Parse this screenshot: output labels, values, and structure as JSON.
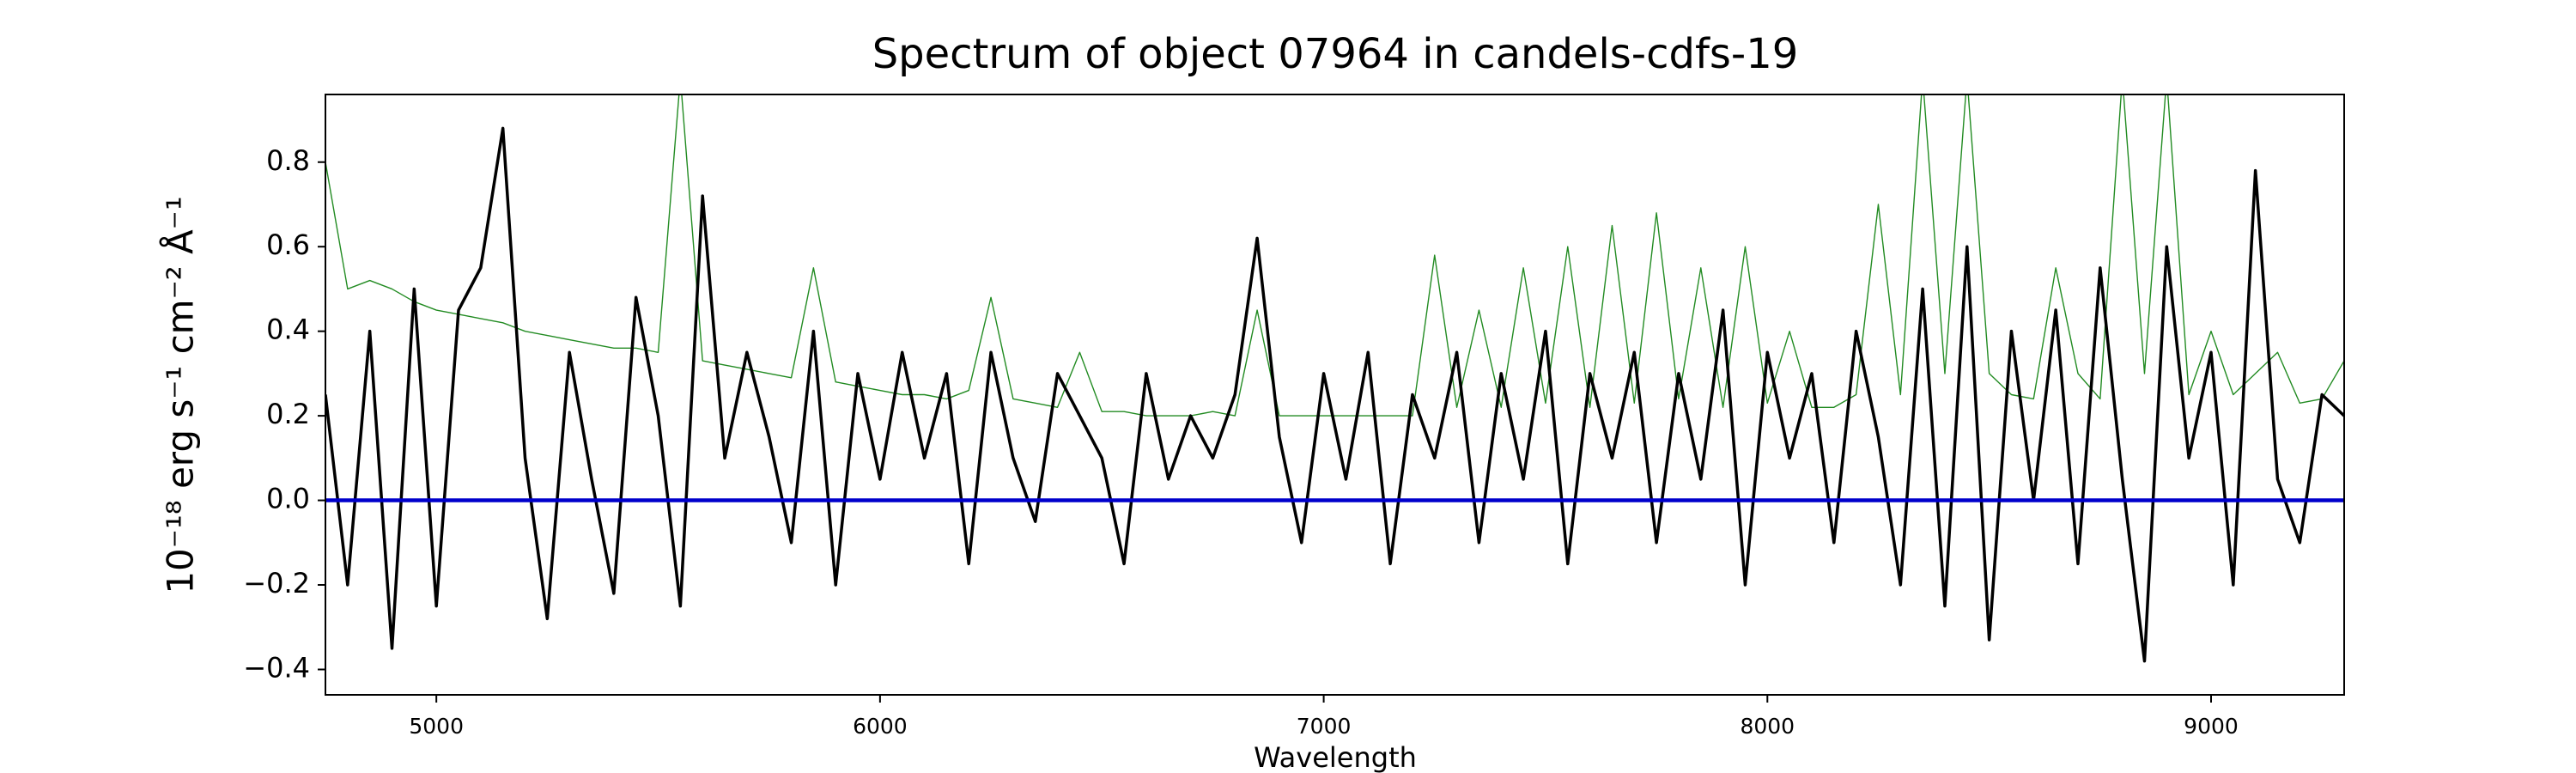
{
  "chart_data": {
    "type": "line",
    "title": "Spectrum of object 07964 in candels-cdfs-19",
    "xlabel": "Wavelength",
    "ylabel": "10⁻¹⁸ erg s⁻¹ cm⁻² Å⁻¹",
    "x": [
      4750,
      4800,
      4850,
      4900,
      4950,
      5000,
      5050,
      5100,
      5150,
      5200,
      5250,
      5300,
      5350,
      5400,
      5450,
      5500,
      5550,
      5600,
      5650,
      5700,
      5750,
      5800,
      5850,
      5900,
      5950,
      6000,
      6050,
      6100,
      6150,
      6200,
      6250,
      6300,
      6350,
      6400,
      6450,
      6500,
      6550,
      6600,
      6650,
      6700,
      6750,
      6800,
      6850,
      6900,
      6950,
      7000,
      7050,
      7100,
      7150,
      7200,
      7250,
      7300,
      7350,
      7400,
      7450,
      7500,
      7550,
      7600,
      7650,
      7700,
      7750,
      7800,
      7850,
      7900,
      7950,
      8000,
      8050,
      8100,
      8150,
      8200,
      8250,
      8300,
      8350,
      8400,
      8450,
      8500,
      8550,
      8600,
      8650,
      8700,
      8750,
      8800,
      8850,
      8900,
      8950,
      9000,
      9050,
      9100,
      9150,
      9200,
      9250,
      9300
    ],
    "series": [
      {
        "color": "#228b22",
        "values": [
          0.8,
          0.5,
          0.52,
          0.5,
          0.47,
          0.45,
          0.44,
          0.43,
          0.42,
          0.4,
          0.39,
          0.38,
          0.37,
          0.36,
          0.36,
          0.35,
          1.0,
          0.33,
          0.32,
          0.31,
          0.3,
          0.29,
          0.55,
          0.28,
          0.27,
          0.26,
          0.25,
          0.25,
          0.24,
          0.26,
          0.48,
          0.24,
          0.23,
          0.22,
          0.35,
          0.21,
          0.21,
          0.2,
          0.2,
          0.2,
          0.21,
          0.2,
          0.45,
          0.2,
          0.2,
          0.2,
          0.2,
          0.2,
          0.2,
          0.2,
          0.58,
          0.22,
          0.45,
          0.22,
          0.55,
          0.23,
          0.6,
          0.22,
          0.65,
          0.23,
          0.68,
          0.24,
          0.55,
          0.22,
          0.6,
          0.23,
          0.4,
          0.22,
          0.22,
          0.25,
          0.7,
          0.25,
          1.0,
          0.3,
          1.0,
          0.3,
          0.25,
          0.24,
          0.55,
          0.3,
          0.24,
          1.0,
          0.3,
          1.0,
          0.25,
          0.4,
          0.25,
          0.3,
          0.35,
          0.23,
          0.24,
          0.33
        ]
      },
      {
        "color": "#000000",
        "values": [
          0.25,
          -0.2,
          0.4,
          -0.35,
          0.5,
          -0.25,
          0.45,
          0.55,
          0.88,
          0.1,
          -0.28,
          0.35,
          0.05,
          -0.22,
          0.48,
          0.2,
          -0.25,
          0.72,
          0.1,
          0.35,
          0.15,
          -0.1,
          0.4,
          -0.2,
          0.3,
          0.05,
          0.35,
          0.1,
          0.3,
          -0.15,
          0.35,
          0.1,
          -0.05,
          0.3,
          0.2,
          0.1,
          -0.15,
          0.3,
          0.05,
          0.2,
          0.1,
          0.25,
          0.62,
          0.15,
          -0.1,
          0.3,
          0.05,
          0.35,
          -0.15,
          0.25,
          0.1,
          0.35,
          -0.1,
          0.3,
          0.05,
          0.4,
          -0.15,
          0.3,
          0.1,
          0.35,
          -0.1,
          0.3,
          0.05,
          0.45,
          -0.2,
          0.35,
          0.1,
          0.3,
          -0.1,
          0.4,
          0.15,
          -0.2,
          0.5,
          -0.25,
          0.6,
          -0.33,
          0.4,
          0.0,
          0.45,
          -0.15,
          0.55,
          0.05,
          -0.38,
          0.6,
          0.1,
          0.35,
          -0.2,
          0.78,
          0.05,
          -0.1,
          0.25,
          0.2
        ]
      },
      {
        "color": "#0000cc",
        "x": [
          4750,
          9300
        ],
        "values": [
          0,
          0
        ]
      }
    ],
    "xlim": [
      4750,
      9300
    ],
    "ylim": [
      -0.46,
      0.96
    ],
    "xticks": [
      5000,
      6000,
      7000,
      8000,
      9000
    ],
    "yticks": [
      {
        "value": -0.4,
        "label": "−0.4"
      },
      {
        "value": -0.2,
        "label": "−0.2"
      },
      {
        "value": 0,
        "label": "0.0"
      },
      0.2,
      0.4,
      0.6,
      0.8
    ],
    "grid": false
  }
}
